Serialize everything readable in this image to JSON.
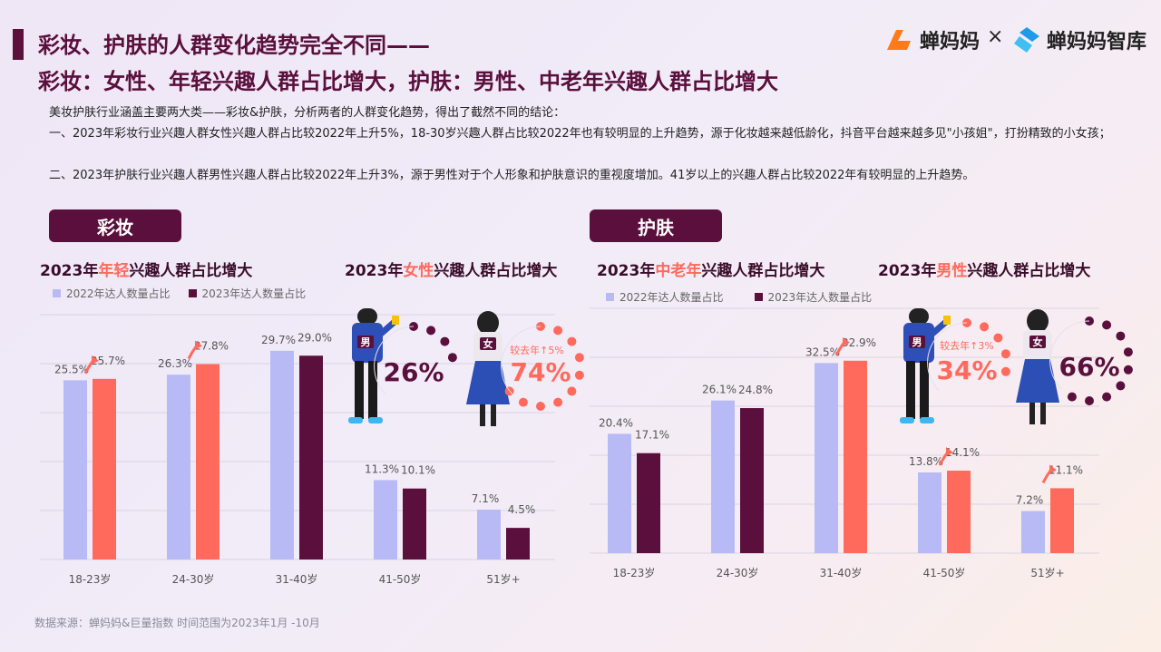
{
  "header": {
    "title_line1": "彩妆、护肤的人群变化趋势完全不同——",
    "title_line2": "彩妆：女性、年轻兴趣人群占比增大，护肤：男性、中老年兴趣人群占比增大",
    "logo1": "蝉妈妈",
    "logo_sep": "×",
    "logo2": "蝉妈妈智库"
  },
  "intro": {
    "line1": "美妆护肤行业涵盖主要两大类——彩妆&护肤，分析两者的人群变化趋势，得出了截然不同的结论：",
    "line2": "一、2023年彩妆行业兴趣人群女性兴趣人群占比较2022年上升5%，18-30岁兴趣人群占比较2022年也有较明显的上升趋势，源于化妆越来越低龄化，抖音平台越来越多见\"小孩姐\"，打扮精致的小女孩；",
    "line3": "二、2023年护肤行业兴趣人群男性兴趣人群占比较2022年上升3%，源于男性对于个人形象和护肤意识的重视度增加。41岁以上的兴趣人群占比较2022年有较明显的上升趋势。"
  },
  "colors": {
    "y2022": "#b8baf6",
    "y2023_up": "#ff6a5c",
    "y2023_down": "#5a0f3c",
    "brand": "#5a0f3c"
  },
  "makeup": {
    "section_label": "彩妆",
    "age_title_pre": "2023年",
    "age_title_hl": "年轻",
    "age_title_post": "兴趣人群占比增大",
    "gender_title_pre": "2023年",
    "gender_title_hl": "女性",
    "gender_title_post": "兴趣人群占比增大",
    "male_tag": "男",
    "female_tag": "女",
    "male_pct": "26%",
    "female_pct": "74%",
    "change_note": "较去年↑5%"
  },
  "skincare": {
    "section_label": "护肤",
    "age_title_pre": "2023年",
    "age_title_hl": "中老年",
    "age_title_post": "兴趣人群占比增大",
    "gender_title_pre": "2023年",
    "gender_title_hl": "男性",
    "gender_title_post": "兴趣人群占比增大",
    "male_tag": "男",
    "female_tag": "女",
    "male_pct": "34%",
    "female_pct": "66%",
    "change_note": "较去年↑3%"
  },
  "legend": {
    "y2022": "2022年达人数量占比",
    "y2023": "2023年达人数量占比"
  },
  "chart_data": [
    {
      "type": "bar",
      "title": "2023年年轻兴趣人群占比增大",
      "categories": [
        "18-23岁",
        "24-30岁",
        "31-40岁",
        "41-50岁",
        "51岁+"
      ],
      "series": [
        {
          "name": "2022年达人数量占比",
          "values": [
            25.5,
            26.3,
            29.7,
            11.3,
            7.1
          ]
        },
        {
          "name": "2023年达人数量占比",
          "values": [
            25.7,
            27.8,
            29.0,
            10.1,
            4.5
          ]
        }
      ],
      "labels_2022": [
        "25.5%",
        "26.3%",
        "29.7%",
        "11.3%",
        "7.1%"
      ],
      "labels_2023": [
        "25.7%",
        "27.8%",
        "29.0%",
        "10.1%",
        "4.5%"
      ],
      "ylim": [
        0,
        35
      ],
      "legend": "top-left",
      "grid": true
    },
    {
      "type": "bar",
      "title": "2023年中老年兴趣人群占比增大",
      "categories": [
        "18-23岁",
        "24-30岁",
        "31-40岁",
        "41-50岁",
        "51岁+"
      ],
      "series": [
        {
          "name": "2022年达人数量占比",
          "values": [
            20.4,
            26.1,
            32.5,
            13.8,
            7.2
          ]
        },
        {
          "name": "2023年达人数量占比",
          "values": [
            17.1,
            24.8,
            32.9,
            14.1,
            11.1
          ]
        }
      ],
      "labels_2022": [
        "20.4%",
        "26.1%",
        "32.5%",
        "13.8%",
        "7.2%"
      ],
      "labels_2023": [
        "17.1%",
        "24.8%",
        "32.9%",
        "14.1%",
        "11.1%"
      ],
      "ylim": [
        0,
        40
      ],
      "legend": "top-left",
      "grid": true
    },
    {
      "type": "pie",
      "title": "2023年女性兴趣人群占比增大",
      "categories": [
        "男",
        "女"
      ],
      "values": [
        26,
        74
      ]
    },
    {
      "type": "pie",
      "title": "2023年男性兴趣人群占比增大",
      "categories": [
        "男",
        "女"
      ],
      "values": [
        34,
        66
      ]
    }
  ],
  "footer": {
    "source": "数据来源：蝉妈妈&巨量指数    时间范围为2023年1月 -10月"
  }
}
